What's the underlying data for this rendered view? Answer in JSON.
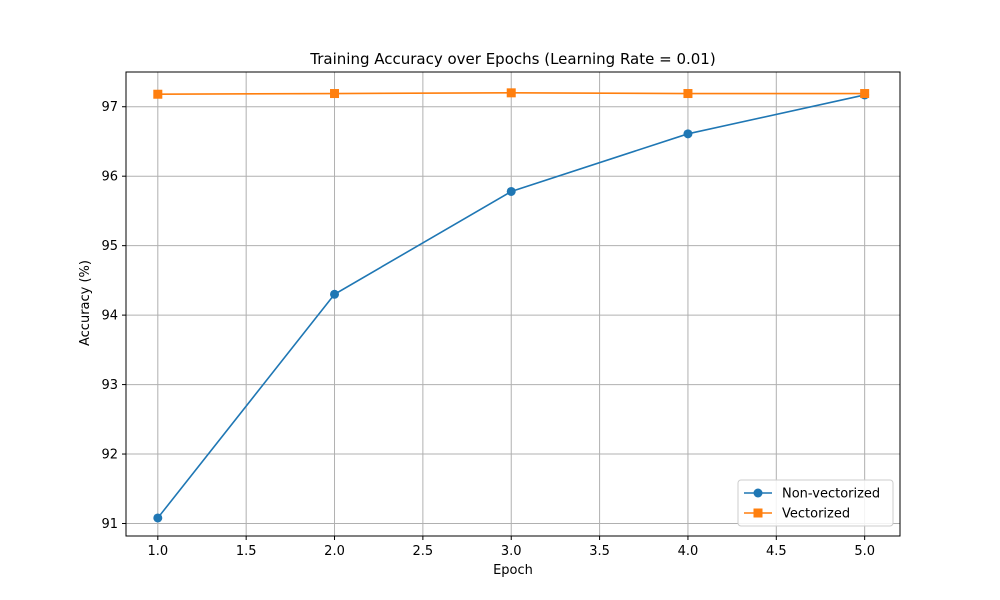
{
  "chart_data": {
    "type": "line",
    "title": "Training Accuracy over Epochs (Learning Rate = 0.01)",
    "xlabel": "Epoch",
    "ylabel": "Accuracy (%)",
    "xlim": [
      0.82,
      5.2
    ],
    "ylim": [
      90.82,
      97.5
    ],
    "xticks": [
      1.0,
      1.5,
      2.0,
      2.5,
      3.0,
      3.5,
      4.0,
      4.5,
      5.0
    ],
    "xtick_labels": [
      "1.0",
      "1.5",
      "2.0",
      "2.5",
      "3.0",
      "3.5",
      "4.0",
      "4.5",
      "5.0"
    ],
    "yticks": [
      91,
      92,
      93,
      94,
      95,
      96,
      97
    ],
    "ytick_labels": [
      "91",
      "92",
      "93",
      "94",
      "95",
      "96",
      "97"
    ],
    "grid": true,
    "legend_position": "lower-right",
    "x": [
      1,
      2,
      3,
      4,
      5
    ],
    "series": [
      {
        "name": "Non-vectorized",
        "values": [
          91.08,
          94.3,
          95.78,
          96.61,
          97.17
        ],
        "color": "#1f77b4",
        "marker": "circle"
      },
      {
        "name": "Vectorized",
        "values": [
          97.18,
          97.19,
          97.2,
          97.19,
          97.19
        ],
        "color": "#ff7f0e",
        "marker": "square"
      }
    ]
  }
}
